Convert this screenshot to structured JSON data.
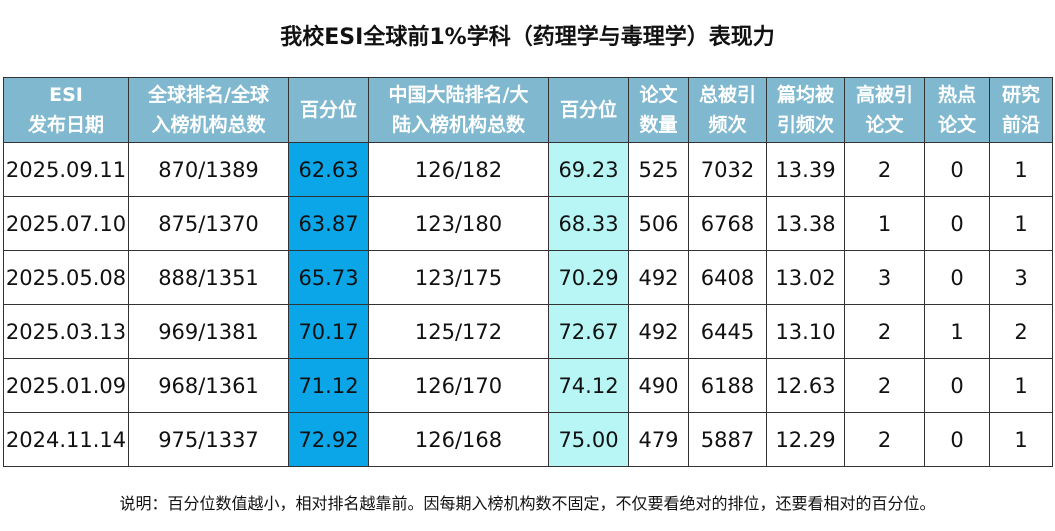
{
  "title": "我校ESI全球前1%学科（药理学与毒理学）表现力",
  "headers": [
    {
      "l1": "ESI",
      "l2": "发布日期"
    },
    {
      "l1": "全球排名/全球",
      "l2": "入榜机构总数"
    },
    {
      "l1": "百分位",
      "l2": ""
    },
    {
      "l1": "中国大陆排名/大",
      "l2": "陆入榜机构总数"
    },
    {
      "l1": "百分位",
      "l2": ""
    },
    {
      "l1": "论文",
      "l2": "数量"
    },
    {
      "l1": "总被引",
      "l2": "频次"
    },
    {
      "l1": "篇均被",
      "l2": "引频次"
    },
    {
      "l1": "高被引",
      "l2": "论文"
    },
    {
      "l1": "热点",
      "l2": "论文"
    },
    {
      "l1": "研究",
      "l2": "前沿"
    }
  ],
  "rows": [
    [
      "2025.09.11",
      "870/1389",
      "62.63",
      "126/182",
      "69.23",
      "525",
      "7032",
      "13.39",
      "2",
      "0",
      "1"
    ],
    [
      "2025.07.10",
      "875/1370",
      "63.87",
      "123/180",
      "68.33",
      "506",
      "6768",
      "13.38",
      "1",
      "0",
      "1"
    ],
    [
      "2025.05.08",
      "888/1351",
      "65.73",
      "123/175",
      "70.29",
      "492",
      "6408",
      "13.02",
      "3",
      "0",
      "3"
    ],
    [
      "2025.03.13",
      "969/1381",
      "70.17",
      "125/172",
      "72.67",
      "492",
      "6445",
      "13.10",
      "2",
      "1",
      "2"
    ],
    [
      "2025.01.09",
      "968/1361",
      "71.12",
      "126/170",
      "74.12",
      "490",
      "6188",
      "12.63",
      "2",
      "0",
      "1"
    ],
    [
      "2024.11.14",
      "975/1337",
      "72.92",
      "126/168",
      "75.00",
      "479",
      "5887",
      "12.29",
      "2",
      "0",
      "1"
    ]
  ],
  "note": "说明：百分位数值越小，相对排名越靠前。因每期入榜机构数不固定，不仅要看绝对的排位，还要看相对的百分位。",
  "colors": {
    "header_bg": "#7fb8cf",
    "global_percentile_bg": "#0aa6e8",
    "china_percentile_bg": "#b8f5f5"
  }
}
